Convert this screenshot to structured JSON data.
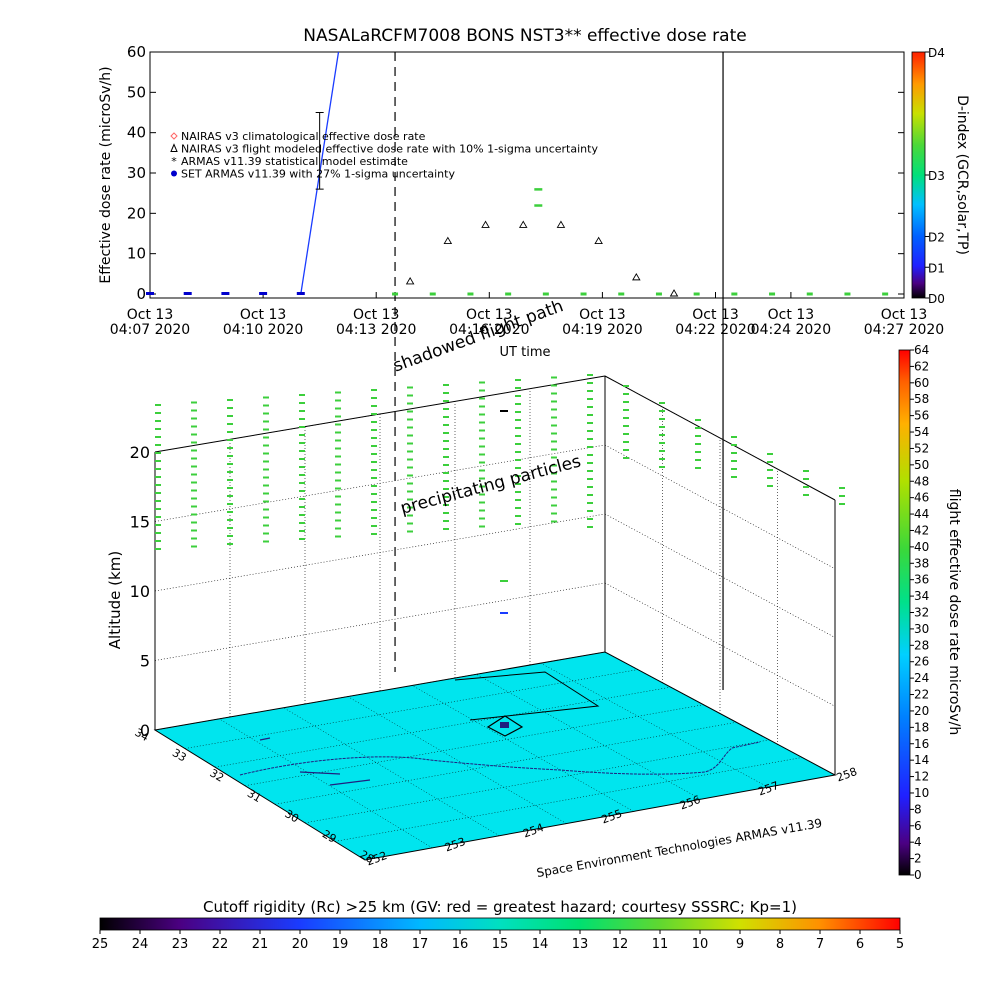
{
  "colors": {
    "background": "#ffffff",
    "ground_plane": "#00e5ee",
    "dose_line": "#1a3cff",
    "armas_marker": "#3ccf3c",
    "set_marker": "#0000cc",
    "nairas_triangle": "#000000",
    "nairas_climo": "#ff6666",
    "flight_track": "#202080"
  },
  "chart_data": [
    {
      "type": "scatter",
      "title": "NASALaRCFM7008  BONS NST3** effective dose rate",
      "ylabel": "Effective dose rate (microSv/h)",
      "xlabel": "UT time",
      "ylim": [
        0,
        60
      ],
      "yticks": [
        0,
        10,
        20,
        30,
        40,
        50,
        60
      ],
      "xlim": [
        0,
        20
      ],
      "xticks": [
        {
          "x": 0,
          "line1": "Oct 13",
          "line2": "04:07 2020"
        },
        {
          "x": 3,
          "line1": "Oct 13",
          "line2": "04:10 2020"
        },
        {
          "x": 6,
          "line1": "Oct 13",
          "line2": "04:13 2020"
        },
        {
          "x": 9,
          "line1": "Oct 13",
          "line2": "04:16 2020"
        },
        {
          "x": 12,
          "line1": "Oct 13",
          "line2": "04:19 2020"
        },
        {
          "x": 15,
          "line1": "Oct 13",
          "line2": "04:22 2020"
        },
        {
          "x": 17,
          "line1": "Oct 13",
          "line2": "04:24 2020"
        },
        {
          "x": 20,
          "line1": "Oct 13",
          "line2": "04:27 2020"
        }
      ],
      "legend": [
        "NAIRAS v3 climatological effective dose rate",
        "NAIRAS v3 flight modeled effective dose rate with 10% 1-sigma uncertainty",
        "ARMAS v11.39 statistical model estimate",
        "SET ARMAS v11.39 with 27% 1-sigma uncertainty"
      ],
      "series": [
        {
          "name": "NAIRAS v3 flight modeled effective dose rate with 10% 1-sigma uncertainty",
          "marker": "triangle",
          "x": [
            6.9,
            7.9,
            8.9,
            9.9,
            10.9,
            11.9,
            12.9,
            13.9
          ],
          "y": [
            3,
            13,
            17,
            17,
            17,
            13,
            4,
            0
          ]
        },
        {
          "name": "ARMAS v11.39 statistical model estimate",
          "marker": "green-dash",
          "x": [
            6.5,
            7.5,
            8.5,
            9.5,
            10.5,
            11.5,
            12.5,
            13.5,
            14.5,
            15.5,
            16.5,
            17.5,
            18.5,
            19.5
          ],
          "y": [
            0,
            0,
            0,
            0,
            0,
            0,
            0,
            0,
            0,
            0,
            0,
            0,
            0,
            0
          ]
        },
        {
          "name": "SET ARMAS v11.39 with 27% 1-sigma uncertainty",
          "marker": "dot",
          "x": [
            0,
            1,
            2,
            3,
            4
          ],
          "y": [
            0,
            0,
            0,
            0,
            0
          ]
        }
      ],
      "extra_green_points": [
        {
          "x": 10.3,
          "y": 26
        },
        {
          "x": 10.3,
          "y": 22
        }
      ],
      "dose_line": {
        "x": [
          4,
          5
        ],
        "y": [
          0,
          60
        ]
      },
      "error_bar": {
        "x": 4.5,
        "low": 26,
        "high": 45
      },
      "vertical_lines": [
        {
          "x": 6.5,
          "style": "dashed"
        },
        {
          "x": 15.2,
          "style": "solid"
        }
      ],
      "dindex_colorbar": {
        "label": "D-index (GCR,solar,TP)",
        "ticks": [
          "D4",
          "D3",
          "D2",
          "D1",
          "D0"
        ],
        "tick_fractions": [
          1.0,
          0.5,
          0.25,
          0.125,
          0.0
        ]
      }
    },
    {
      "type": "scatter",
      "title": "",
      "zlabel": "Altitude (km)",
      "zlim": [
        0,
        20
      ],
      "zticks": [
        0,
        5,
        10,
        15,
        20
      ],
      "lat_ticks": [
        "34",
        "33",
        "32",
        "31",
        "30",
        "29",
        "28"
      ],
      "lon_ticks": [
        "252",
        "253",
        "254",
        "255",
        "256",
        "257",
        "258"
      ],
      "annotations": [
        "shadowed flight path",
        "precipitating particles",
        "Space Environment Technologies ARMAS v11.39"
      ],
      "right_colorbar": {
        "label": "flight effective dose rate microSv/h",
        "ticks": [
          0,
          2,
          4,
          6,
          8,
          10,
          12,
          14,
          16,
          18,
          20,
          22,
          24,
          26,
          28,
          30,
          32,
          34,
          36,
          38,
          40,
          42,
          44,
          46,
          48,
          50,
          52,
          54,
          56,
          58,
          60,
          62,
          64
        ]
      },
      "bottom_colorbar": {
        "label": "Cutoff rigidity (Rc) >25 km (GV: red = greatest hazard; courtesy SSSRC; Kp=1)",
        "ticks": [
          25,
          24,
          23,
          22,
          21,
          20,
          19,
          18,
          17,
          16,
          15,
          14,
          13,
          12,
          11,
          10,
          9,
          8,
          7,
          6,
          5
        ]
      }
    }
  ]
}
